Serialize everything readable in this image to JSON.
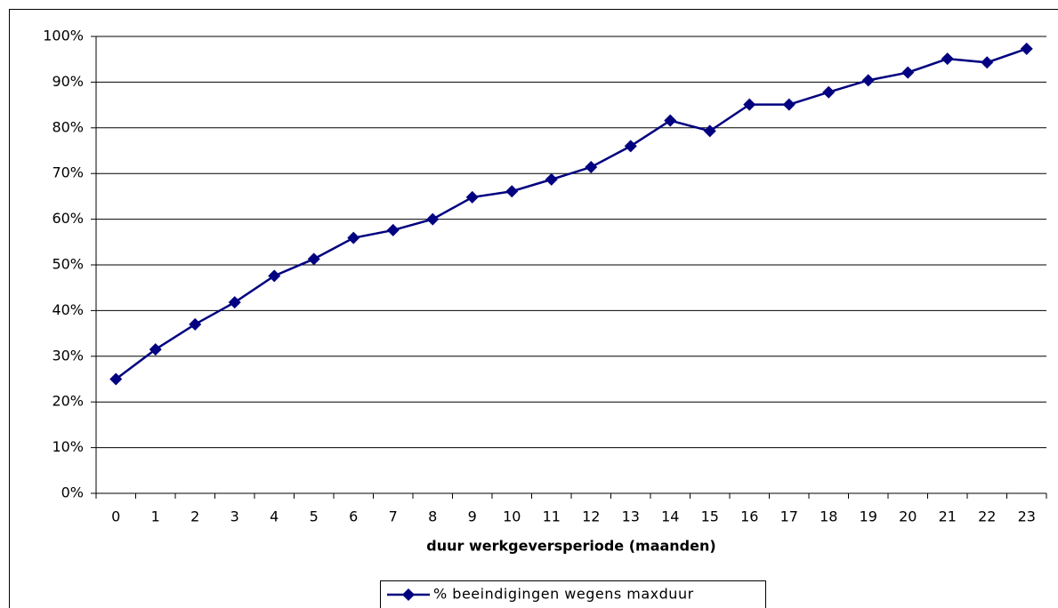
{
  "chart_data": {
    "type": "line",
    "x_label": "duur werkgeversperiode (maanden)",
    "categories": [
      "0",
      "1",
      "2",
      "3",
      "4",
      "5",
      "6",
      "7",
      "8",
      "9",
      "10",
      "11",
      "12",
      "13",
      "14",
      "15",
      "16",
      "17",
      "18",
      "19",
      "20",
      "21",
      "22",
      "23"
    ],
    "series": [
      {
        "name": "% beeindigingen wegens maxduur",
        "color": "#000080",
        "values": [
          25,
          31.5,
          37,
          41.8,
          47.6,
          51.3,
          55.9,
          57.6,
          60,
          64.8,
          66.1,
          68.7,
          71.4,
          76,
          81.6,
          79.3,
          85.1,
          85.1,
          87.8,
          90.4,
          92.1,
          95.1,
          94.3,
          97.3
        ]
      }
    ],
    "ylim": [
      0,
      100
    ],
    "yticks": [
      {
        "value": 0,
        "label": "0%"
      },
      {
        "value": 10,
        "label": "10%"
      },
      {
        "value": 20,
        "label": "20%"
      },
      {
        "value": 30,
        "label": "30%"
      },
      {
        "value": 40,
        "label": "40%"
      },
      {
        "value": 50,
        "label": "50%"
      },
      {
        "value": 60,
        "label": "60%"
      },
      {
        "value": 70,
        "label": "70%"
      },
      {
        "value": 80,
        "label": "80%"
      },
      {
        "value": 90,
        "label": "90%"
      },
      {
        "value": 100,
        "label": "100%"
      }
    ],
    "grid": true,
    "legend": "bottom"
  }
}
